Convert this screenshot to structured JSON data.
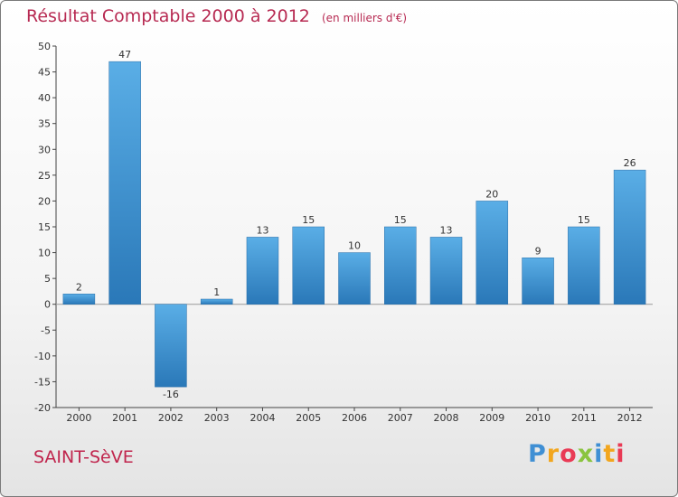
{
  "header": {
    "title": "Résultat Comptable 2000 à 2012",
    "subtitle": "(en milliers d'€)"
  },
  "footer": {
    "commune": "SAINT-SèVE",
    "brand_letters": [
      "P",
      "r",
      "o",
      "x",
      "i",
      "t",
      "i"
    ]
  },
  "colors": {
    "bar_light": "#5aaee6",
    "bar_dark": "#2a78b8",
    "grid": "#cccccc",
    "axis": "#444444",
    "title": "#b72a52"
  },
  "chart_data": {
    "type": "bar",
    "title": "Résultat Comptable 2000 à 2012",
    "subtitle": "(en milliers d'€)",
    "xlabel": "",
    "ylabel": "",
    "ylim": [
      -20,
      50
    ],
    "ytick_step": 5,
    "yticks": [
      "-20",
      "-15",
      "-10",
      "-5",
      "0",
      "5",
      "10",
      "15",
      "20",
      "25",
      "30",
      "35",
      "40",
      "45",
      "50"
    ],
    "grid": false,
    "categories": [
      "2000",
      "2001",
      "2002",
      "2003",
      "2004",
      "2005",
      "2006",
      "2007",
      "2008",
      "2009",
      "2010",
      "2011",
      "2012"
    ],
    "values": [
      2,
      47,
      -16,
      1,
      13,
      15,
      10,
      15,
      13,
      20,
      9,
      15,
      26
    ],
    "value_labels": [
      "2",
      "47",
      "-16",
      "1",
      "13",
      "15",
      "10",
      "15",
      "13",
      "20",
      "9",
      "15",
      "26"
    ]
  }
}
